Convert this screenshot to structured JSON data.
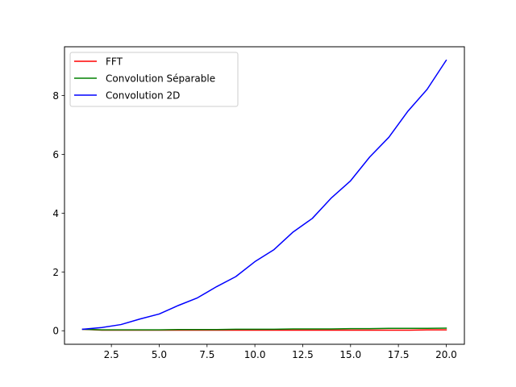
{
  "chart_data": {
    "type": "line",
    "title": "",
    "xlabel": "",
    "ylabel": "",
    "xlim": [
      0.05,
      20.95
    ],
    "ylim": [
      -0.46,
      9.66
    ],
    "xticks": [
      2.5,
      5.0,
      7.5,
      10.0,
      12.5,
      15.0,
      17.5,
      20.0
    ],
    "xtick_labels": [
      "2.5",
      "5.0",
      "7.5",
      "10.0",
      "12.5",
      "15.0",
      "17.5",
      "20.0"
    ],
    "yticks": [
      0,
      2,
      4,
      6,
      8
    ],
    "ytick_labels": [
      "0",
      "2",
      "4",
      "6",
      "8"
    ],
    "grid": false,
    "legend_position": "upper-left",
    "x": [
      1,
      2,
      3,
      4,
      5,
      6,
      7,
      8,
      9,
      10,
      11,
      12,
      13,
      14,
      15,
      16,
      17,
      18,
      19,
      20
    ],
    "series": [
      {
        "name": "FFT",
        "color": "#ff0000",
        "values": [
          0.05,
          0.02,
          0.02,
          0.02,
          0.02,
          0.02,
          0.02,
          0.02,
          0.02,
          0.02,
          0.02,
          0.02,
          0.02,
          0.02,
          0.02,
          0.02,
          0.02,
          0.02,
          0.03,
          0.03
        ]
      },
      {
        "name": "Convolution Séparable",
        "color": "#008000",
        "values": [
          0.05,
          0.03,
          0.03,
          0.03,
          0.03,
          0.04,
          0.04,
          0.04,
          0.05,
          0.05,
          0.05,
          0.06,
          0.06,
          0.06,
          0.07,
          0.07,
          0.08,
          0.08,
          0.08,
          0.09
        ]
      },
      {
        "name": "Convolution 2D",
        "color": "#0000ff",
        "values": [
          0.05,
          0.11,
          0.21,
          0.4,
          0.57,
          0.86,
          1.12,
          1.5,
          1.84,
          2.35,
          2.76,
          3.36,
          3.82,
          4.52,
          5.1,
          5.91,
          6.58,
          7.47,
          8.21,
          9.2
        ]
      }
    ]
  }
}
